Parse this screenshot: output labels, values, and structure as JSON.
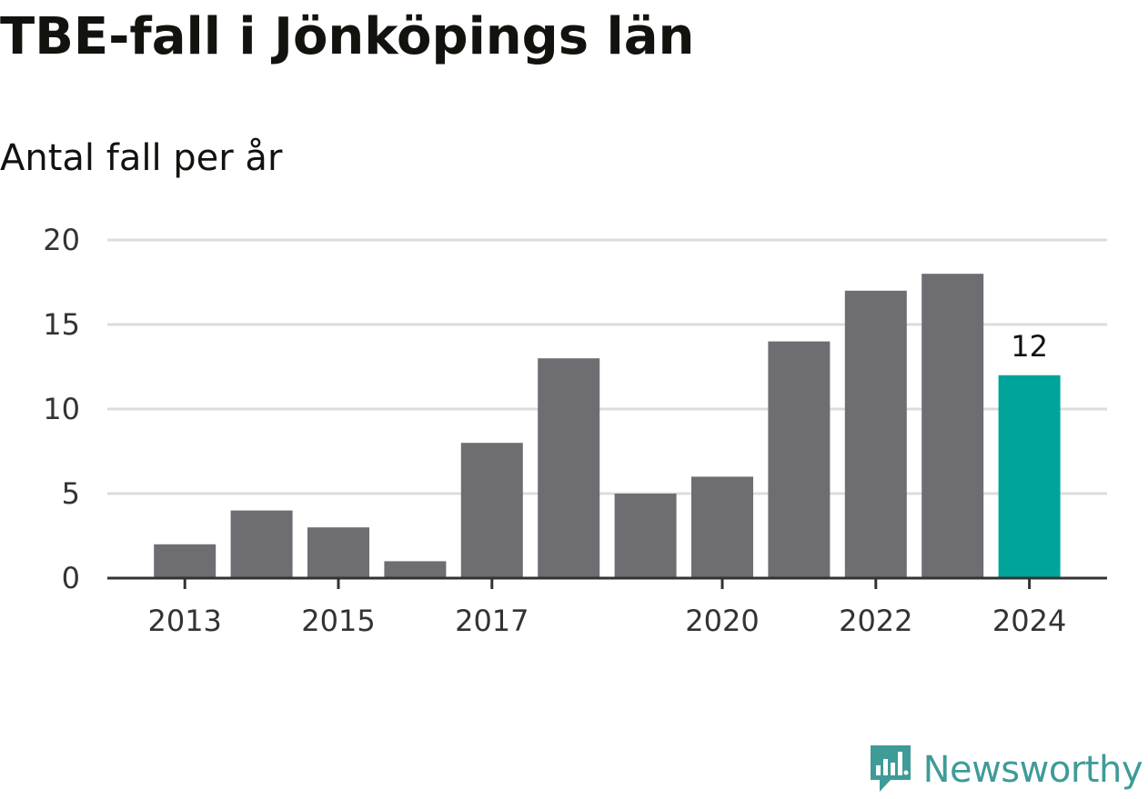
{
  "header": {
    "title": "TBE-fall i Jönköpings län",
    "subtitle": "Antal fall per år"
  },
  "chart_data": {
    "type": "bar",
    "title": "TBE-fall i Jönköpings län",
    "subtitle": "Antal fall per år",
    "categories": [
      "2013",
      "2014",
      "2015",
      "2016",
      "2017",
      "2018",
      "2019",
      "2020",
      "2021",
      "2022",
      "2023",
      "2024"
    ],
    "x_tick_labels": [
      "2013",
      "2015",
      "2017",
      "2020",
      "2022",
      "2024"
    ],
    "values": [
      2,
      4,
      3,
      1,
      8,
      13,
      5,
      6,
      14,
      17,
      18,
      12
    ],
    "highlight": {
      "category": "2024",
      "value_label": "12",
      "color": "#00a49a"
    },
    "bar_color": "#6e6d72",
    "y_ticks": [
      0,
      5,
      10,
      15,
      20
    ],
    "ylim": [
      0,
      20
    ],
    "xlabel": "",
    "ylabel": "",
    "grid": true
  },
  "branding": {
    "name": "Newsworthy",
    "color": "#3f9b98",
    "icon": "newsworthy-logo-icon"
  }
}
